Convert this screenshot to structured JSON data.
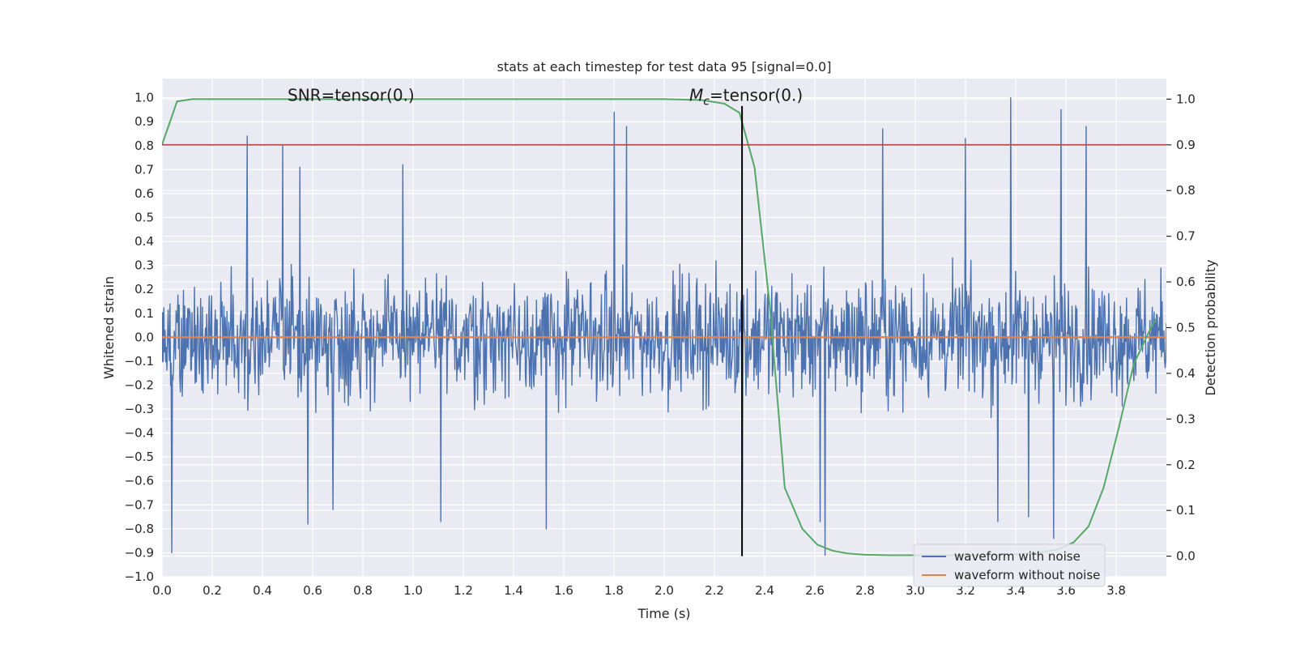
{
  "chart_data": {
    "type": "line",
    "title": "stats at each timestep for test data 95 [signal=0.0]",
    "xlabel": "Time (s)",
    "ylabel_left": "Whitened strain",
    "ylabel_right": "Detection probability",
    "xlim": [
      0.0,
      4.0
    ],
    "ylim_left": [
      -1.0,
      1.08
    ],
    "ylim_right": [
      -0.045,
      1.045
    ],
    "x_ticks": [
      0.0,
      0.2,
      0.4,
      0.6,
      0.8,
      1.0,
      1.2,
      1.4,
      1.6,
      1.8,
      2.0,
      2.2,
      2.4,
      2.6,
      2.8,
      3.0,
      3.2,
      3.4,
      3.6,
      3.8
    ],
    "x_tick_labels": [
      "0.0",
      "0.2",
      "0.4",
      "0.6",
      "0.8",
      "1.0",
      "1.2",
      "1.4",
      "1.6",
      "1.8",
      "2.0",
      "2.2",
      "2.4",
      "2.6",
      "2.8",
      "3.0",
      "3.2",
      "3.4",
      "3.6",
      "3.8"
    ],
    "y_left_ticks": [
      -1.0,
      -0.9,
      -0.8,
      -0.7,
      -0.6,
      -0.5,
      -0.4,
      -0.3,
      -0.2,
      -0.1,
      0.0,
      0.1,
      0.2,
      0.3,
      0.4,
      0.5,
      0.6,
      0.7,
      0.8,
      0.9,
      1.0
    ],
    "y_left_tick_labels": [
      "−1.0",
      "−0.9",
      "−0.8",
      "−0.7",
      "−0.6",
      "−0.5",
      "−0.4",
      "−0.3",
      "−0.2",
      "−0.1",
      "0.0",
      "0.1",
      "0.2",
      "0.3",
      "0.4",
      "0.5",
      "0.6",
      "0.7",
      "0.8",
      "0.9",
      "1.0"
    ],
    "y_right_ticks": [
      0.0,
      0.1,
      0.2,
      0.3,
      0.4,
      0.5,
      0.6,
      0.7,
      0.8,
      0.9,
      1.0
    ],
    "y_right_tick_labels": [
      "0.0",
      "0.1",
      "0.2",
      "0.3",
      "0.4",
      "0.5",
      "0.6",
      "0.7",
      "0.8",
      "0.9",
      "1.0"
    ],
    "grid": true,
    "background": "#eaeaf2",
    "annotations": [
      {
        "text_prefix": "SNR",
        "text": "SNR=tensor(0.)",
        "x": 0.5,
        "y": 1.0
      },
      {
        "text_prefix": "M",
        "subscript": "c",
        "text_suffix": "=tensor(0.)",
        "x": 2.1,
        "y": 1.0
      }
    ],
    "series": [
      {
        "name": "waveform with noise",
        "color": "#4c72b0",
        "axis": "left",
        "style": "noise",
        "x_range": [
          0.0,
          4.0
        ],
        "upper_envelope_typical": 0.3,
        "lower_envelope_typical": -0.35,
        "peaks": [
          {
            "x": 0.34,
            "y": 0.84
          },
          {
            "x": 0.48,
            "y": 0.8
          },
          {
            "x": 0.55,
            "y": 0.71
          },
          {
            "x": 0.96,
            "y": 0.72
          },
          {
            "x": 1.8,
            "y": 0.94
          },
          {
            "x": 1.85,
            "y": 0.88
          },
          {
            "x": 2.87,
            "y": 0.87
          },
          {
            "x": 3.2,
            "y": 0.83
          },
          {
            "x": 3.38,
            "y": 1.0
          },
          {
            "x": 3.58,
            "y": 0.95
          },
          {
            "x": 3.68,
            "y": 0.88
          },
          {
            "x": 2.31,
            "y": 0.83
          },
          {
            "x": 0.04,
            "y": -0.9
          },
          {
            "x": 0.58,
            "y": -0.78
          },
          {
            "x": 0.68,
            "y": -0.72
          },
          {
            "x": 1.11,
            "y": -0.77
          },
          {
            "x": 1.53,
            "y": -0.8
          },
          {
            "x": 2.31,
            "y": -0.72
          },
          {
            "x": 2.62,
            "y": -0.77
          },
          {
            "x": 2.64,
            "y": -0.91
          },
          {
            "x": 3.55,
            "y": -0.84
          },
          {
            "x": 3.45,
            "y": -0.75
          },
          {
            "x": 3.33,
            "y": -0.77
          }
        ]
      },
      {
        "name": "waveform without noise",
        "color": "#dd8452",
        "axis": "left",
        "x": [
          0.0,
          4.0
        ],
        "y": [
          0.0,
          0.0
        ]
      },
      {
        "name": "",
        "color": "#55a868",
        "axis": "right",
        "x": [
          0.0,
          0.06,
          0.12,
          0.2,
          0.5,
          1.0,
          1.5,
          2.0,
          2.15,
          2.24,
          2.3,
          2.36,
          2.42,
          2.48,
          2.55,
          2.61,
          2.67,
          2.73,
          2.8,
          2.9,
          3.0,
          3.1,
          3.2,
          3.3,
          3.4,
          3.5,
          3.57,
          3.63,
          3.69,
          3.75,
          3.81,
          3.87,
          3.93,
          3.96
        ],
        "y": [
          0.9,
          0.995,
          1.0,
          1.0,
          1.0,
          1.0,
          1.0,
          1.0,
          0.998,
          0.99,
          0.97,
          0.85,
          0.55,
          0.15,
          0.06,
          0.025,
          0.012,
          0.006,
          0.003,
          0.002,
          0.002,
          0.002,
          0.002,
          0.002,
          0.004,
          0.008,
          0.015,
          0.03,
          0.065,
          0.15,
          0.28,
          0.42,
          0.49,
          0.52
        ]
      },
      {
        "name": "",
        "color": "#c44e52",
        "axis": "right",
        "x": [
          0.0,
          4.0
        ],
        "y": [
          0.9,
          0.9
        ]
      }
    ],
    "vertical_line": {
      "x": 2.31,
      "ymin_right": 0.0,
      "ymax_right": 0.985,
      "color": "#000000"
    },
    "legend": {
      "placement": "bottom-right",
      "entries": [
        {
          "label": "waveform with noise",
          "color": "#4c72b0"
        },
        {
          "label": "waveform without noise",
          "color": "#dd8452"
        }
      ]
    }
  }
}
